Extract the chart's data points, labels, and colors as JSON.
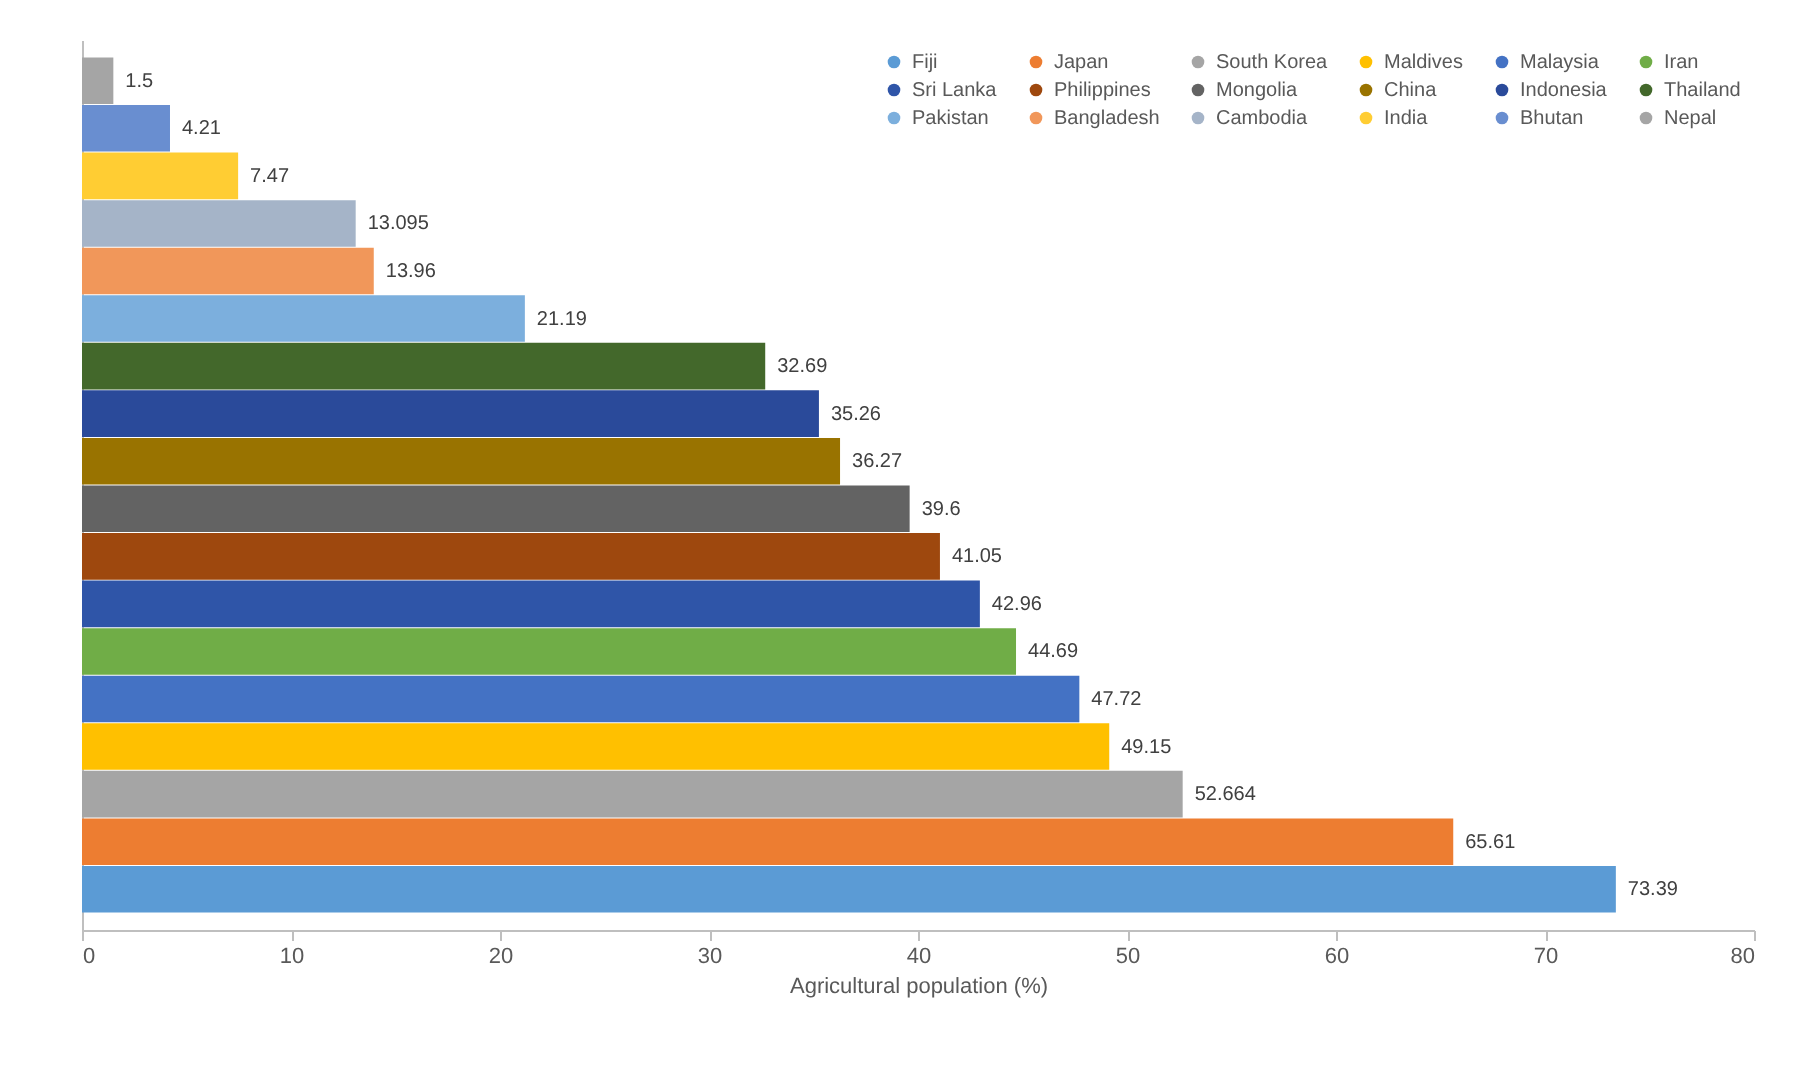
{
  "chart_data": {
    "type": "bar",
    "orientation": "horizontal",
    "xlabel": "Agricultural population (%)",
    "categories": [
      null
    ],
    "series": [
      {
        "name": "Fiji",
        "color": "#5b9bd5",
        "values": [
          73.39
        ]
      },
      {
        "name": "Japan",
        "color": "#ed7d31",
        "values": [
          65.61
        ]
      },
      {
        "name": "South Korea",
        "color": "#a5a5a5",
        "values": [
          52.664
        ]
      },
      {
        "name": "Maldives",
        "color": "#ffc000",
        "values": [
          49.15
        ]
      },
      {
        "name": "Malaysia",
        "color": "#4472c4",
        "values": [
          47.72
        ]
      },
      {
        "name": "Iran",
        "color": "#70ad47",
        "values": [
          44.69
        ]
      },
      {
        "name": "Sri Lanka",
        "color": "#2f55a8",
        "values": [
          42.96
        ]
      },
      {
        "name": "Philippines",
        "color": "#9e480e",
        "values": [
          41.05
        ]
      },
      {
        "name": "Mongolia",
        "color": "#636363",
        "values": [
          39.6
        ]
      },
      {
        "name": "China",
        "color": "#997300",
        "values": [
          36.27
        ]
      },
      {
        "name": "Indonesia",
        "color": "#2a4a9a",
        "values": [
          35.26
        ]
      },
      {
        "name": "Thailand",
        "color": "#43682b",
        "values": [
          32.69
        ]
      },
      {
        "name": "Pakistan",
        "color": "#7cafdd",
        "values": [
          21.19
        ]
      },
      {
        "name": "Bangladesh",
        "color": "#f1975a",
        "values": [
          13.96
        ]
      },
      {
        "name": "Cambodia",
        "color": "#a5b4c8",
        "values": [
          13.095
        ]
      },
      {
        "name": "India",
        "color": "#ffcd33",
        "values": [
          7.47
        ]
      },
      {
        "name": "Bhutan",
        "color": "#698ed0",
        "values": [
          4.21
        ]
      },
      {
        "name": "Nepal",
        "color": "#a5a5a5",
        "values": [
          1.5
        ]
      }
    ],
    "xlim": [
      0,
      80
    ],
    "xticks": [
      0,
      10,
      20,
      30,
      40,
      50,
      60,
      70,
      80
    ],
    "data_labels": true,
    "legend": "top right",
    "grid": false,
    "tick_labels": "x"
  }
}
